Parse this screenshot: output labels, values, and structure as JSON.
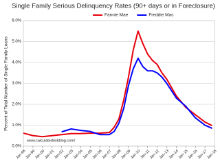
{
  "chart_data": {
    "type": "line",
    "title": "Single Family Serious Delinquency Rates (90+ days or in Foreclosure)",
    "y_label": "Percent of Total Number of Single Family Loans",
    "annotation": "www.calculatedriskblog.com/",
    "x": [
      1998,
      1999,
      2000,
      2001,
      2002,
      2003,
      2004,
      2005,
      2006,
      2007,
      2007.5,
      2008,
      2008.5,
      2009,
      2009.5,
      2010,
      2010.5,
      2011,
      2011.5,
      2012,
      2012.5,
      2013,
      2014,
      2015,
      2016,
      2017,
      2017.75
    ],
    "series": [
      {
        "name": "Fannie Mae",
        "color": "#e8000b",
        "values": [
          0.62,
          0.5,
          0.45,
          0.5,
          0.55,
          0.6,
          0.6,
          0.62,
          0.62,
          0.65,
          0.9,
          1.3,
          2.2,
          3.3,
          4.6,
          5.5,
          4.9,
          4.4,
          4.1,
          3.9,
          3.5,
          3.2,
          2.4,
          1.85,
          1.5,
          1.15,
          0.98
        ]
      },
      {
        "name": "Freddie Mac",
        "color": "#0000ff",
        "values": [
          null,
          null,
          null,
          null,
          0.68,
          0.82,
          0.75,
          0.7,
          0.55,
          0.55,
          0.7,
          1.1,
          1.8,
          2.9,
          3.7,
          4.2,
          3.8,
          3.6,
          3.6,
          3.5,
          3.3,
          3.0,
          2.3,
          1.9,
          1.35,
          1.0,
          0.85
        ]
      }
    ],
    "xlim": [
      1998,
      2018
    ],
    "xticks": [
      {
        "value": 1998,
        "label": "Jan-98"
      },
      {
        "value": 1999,
        "label": "Jan-99"
      },
      {
        "value": 2000,
        "label": "Jan-00"
      },
      {
        "value": 2001,
        "label": "Jan-01"
      },
      {
        "value": 2002,
        "label": "Jan-02"
      },
      {
        "value": 2003,
        "label": "Jan-03"
      },
      {
        "value": 2004,
        "label": "Jan-04"
      },
      {
        "value": 2005,
        "label": "Jan-05"
      },
      {
        "value": 2006,
        "label": "Jan-06"
      },
      {
        "value": 2007,
        "label": "Jan-07"
      },
      {
        "value": 2008,
        "label": "Jan-08"
      },
      {
        "value": 2009,
        "label": "Jan-09"
      },
      {
        "value": 2010,
        "label": "Jan-10"
      },
      {
        "value": 2011,
        "label": "Jan-11"
      },
      {
        "value": 2012,
        "label": "Jan-12"
      },
      {
        "value": 2013,
        "label": "Jan-13"
      },
      {
        "value": 2014,
        "label": "Jan-14"
      },
      {
        "value": 2015,
        "label": "Jan-15"
      },
      {
        "value": 2016,
        "label": "Jan-16"
      },
      {
        "value": 2017,
        "label": "Jan-17"
      },
      {
        "value": 2018,
        "label": "Jan-18"
      }
    ],
    "ylim": [
      0,
      6
    ],
    "yticks": [
      {
        "value": 0,
        "label": "0.0%"
      },
      {
        "value": 1,
        "label": "1.0%"
      },
      {
        "value": 2,
        "label": "2.0%"
      },
      {
        "value": 3,
        "label": "3.0%"
      },
      {
        "value": 4,
        "label": "4.0%"
      },
      {
        "value": 5,
        "label": "5.0%"
      },
      {
        "value": 6,
        "label": "6.0%"
      }
    ],
    "grid": true,
    "legend": "top"
  }
}
